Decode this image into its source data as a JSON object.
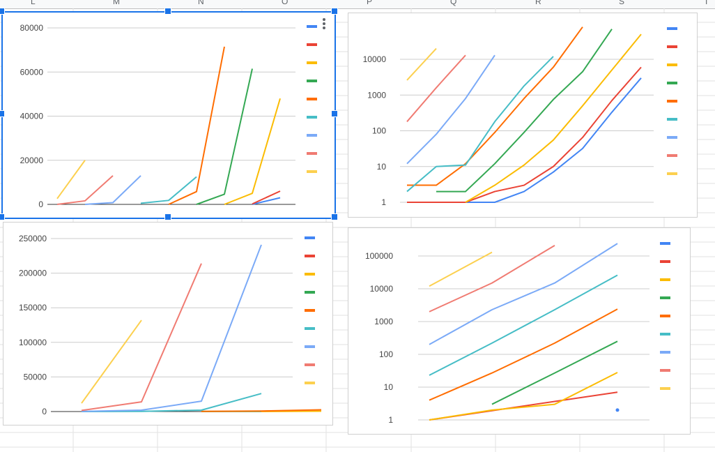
{
  "sheet": {
    "column_headers": [
      "L",
      "M",
      "N",
      "O",
      "P",
      "Q",
      "R",
      "S",
      "T"
    ]
  },
  "colors": [
    "#4285f4",
    "#ea4335",
    "#fbbc04",
    "#34a853",
    "#ff6d01",
    "#46bdc6",
    "#7baaf7",
    "#f07b72",
    "#fcd04f"
  ],
  "chart_data": [
    {
      "type": "line",
      "title": "",
      "ylim": [
        0,
        80000
      ],
      "yticks": [
        "0",
        "20000",
        "40000",
        "60000",
        "80000"
      ],
      "grid": true,
      "legend": "right",
      "series": [
        {
          "color": "#4285f4",
          "points": [
            [
              7,
              0
            ],
            [
              8,
              3000
            ]
          ]
        },
        {
          "color": "#ea4335",
          "points": [
            [
              7,
              200
            ],
            [
              8,
              6000
            ]
          ]
        },
        {
          "color": "#fbbc04",
          "points": [
            [
              6,
              0
            ],
            [
              7,
              5000
            ],
            [
              8,
              48000
            ]
          ]
        },
        {
          "color": "#34a853",
          "points": [
            [
              5,
              0
            ],
            [
              6,
              4600
            ],
            [
              7,
              61500
            ]
          ]
        },
        {
          "color": "#ff6d01",
          "points": [
            [
              4,
              0
            ],
            [
              5,
              5800
            ],
            [
              6,
              71500
            ]
          ]
        },
        {
          "color": "#46bdc6",
          "points": [
            [
              3,
              500
            ],
            [
              4,
              1800
            ],
            [
              5,
              12500
            ]
          ]
        },
        {
          "color": "#7baaf7",
          "points": [
            [
              1,
              0
            ],
            [
              2,
              800
            ],
            [
              3,
              13000
            ]
          ]
        },
        {
          "color": "#f07b72",
          "points": [
            [
              0,
              0
            ],
            [
              1,
              1600
            ],
            [
              2,
              13000
            ]
          ]
        },
        {
          "color": "#fcd04f",
          "points": [
            [
              0,
              2600
            ],
            [
              1,
              20000
            ]
          ]
        }
      ]
    },
    {
      "type": "line",
      "title": "",
      "scale": "log",
      "yticks": [
        "1",
        "10",
        "100",
        "1000",
        "10000"
      ],
      "grid": true,
      "legend": "right",
      "series": [
        {
          "color": "#4285f4",
          "points": [
            [
              2,
              1
            ],
            [
              3,
              1
            ],
            [
              4,
              2
            ],
            [
              5,
              7
            ],
            [
              6,
              32
            ],
            [
              7,
              330
            ],
            [
              8,
              3000
            ]
          ]
        },
        {
          "color": "#ea4335",
          "points": [
            [
              0,
              1
            ],
            [
              2,
              1
            ],
            [
              3,
              2
            ],
            [
              4,
              3
            ],
            [
              5,
              10
            ],
            [
              6,
              65
            ],
            [
              7,
              700
            ],
            [
              8,
              6000
            ]
          ]
        },
        {
          "color": "#fbbc04",
          "points": [
            [
              2,
              1
            ],
            [
              3,
              3
            ],
            [
              4,
              11
            ],
            [
              5,
              55
            ],
            [
              6,
              500
            ],
            [
              7,
              5000
            ],
            [
              8,
              50000
            ]
          ]
        },
        {
          "color": "#34a853",
          "points": [
            [
              1,
              2
            ],
            [
              2,
              2
            ],
            [
              3,
              12
            ],
            [
              4,
              90
            ],
            [
              5,
              750
            ],
            [
              6,
              4500
            ],
            [
              7,
              70000
            ]
          ]
        },
        {
          "color": "#ff6d01",
          "points": [
            [
              0,
              3
            ],
            [
              1,
              3
            ],
            [
              2,
              12
            ],
            [
              3,
              90
            ],
            [
              4,
              800
            ],
            [
              5,
              6000
            ],
            [
              6,
              80000
            ]
          ]
        },
        {
          "color": "#46bdc6",
          "points": [
            [
              0,
              2
            ],
            [
              1,
              10
            ],
            [
              2,
              11
            ],
            [
              3,
              180
            ],
            [
              4,
              1800
            ],
            [
              5,
              12000
            ]
          ]
        },
        {
          "color": "#7baaf7",
          "points": [
            [
              0,
              12
            ],
            [
              1,
              80
            ],
            [
              2,
              800
            ],
            [
              3,
              13000
            ]
          ]
        },
        {
          "color": "#f07b72",
          "points": [
            [
              0,
              180
            ],
            [
              1,
              1600
            ],
            [
              2,
              13000
            ]
          ]
        },
        {
          "color": "#fcd04f",
          "points": [
            [
              0,
              2600
            ],
            [
              1,
              20000
            ]
          ]
        }
      ]
    },
    {
      "type": "line",
      "title": "",
      "ylim": [
        0,
        250000
      ],
      "yticks": [
        "0",
        "50000",
        "100000",
        "150000",
        "200000",
        "250000"
      ],
      "grid": true,
      "legend": "right",
      "series": [
        {
          "color": "#4285f4",
          "points": []
        },
        {
          "color": "#ea4335",
          "points": [
            [
              3,
              500
            ],
            [
              4,
              2000
            ]
          ]
        },
        {
          "color": "#fbbc04",
          "points": [
            [
              3,
              100
            ],
            [
              4,
              500
            ]
          ]
        },
        {
          "color": "#34a853",
          "points": [
            [
              2,
              100
            ],
            [
              3,
              300
            ]
          ]
        },
        {
          "color": "#ff6d01",
          "points": [
            [
              2,
              200
            ],
            [
              3,
              800
            ],
            [
              4,
              2500
            ]
          ]
        },
        {
          "color": "#46bdc6",
          "points": [
            [
              0,
              0
            ],
            [
              1,
              300
            ],
            [
              2,
              2000
            ],
            [
              3,
              26000
            ]
          ]
        },
        {
          "color": "#7baaf7",
          "points": [
            [
              0,
              200
            ],
            [
              1,
              2000
            ],
            [
              2,
              15000
            ],
            [
              3,
              241000
            ]
          ]
        },
        {
          "color": "#f07b72",
          "points": [
            [
              0,
              1600
            ],
            [
              1,
              14000
            ],
            [
              2,
              214000
            ]
          ]
        },
        {
          "color": "#fcd04f",
          "points": [
            [
              0,
              12000
            ],
            [
              1,
              132000
            ]
          ]
        }
      ]
    },
    {
      "type": "line",
      "title": "",
      "scale": "log",
      "yticks": [
        "1",
        "10",
        "100",
        "1000",
        "10000",
        "100000"
      ],
      "grid": true,
      "legend": "right",
      "series": [
        {
          "color": "#4285f4",
          "points": [
            [
              3,
              2
            ]
          ]
        },
        {
          "color": "#ea4335",
          "points": [
            [
              0,
              1
            ],
            [
              3,
              7
            ]
          ]
        },
        {
          "color": "#fbbc04",
          "points": [
            [
              0,
              1
            ],
            [
              1,
              2
            ],
            [
              2,
              3
            ],
            [
              3,
              28
            ]
          ]
        },
        {
          "color": "#34a853",
          "points": [
            [
              1,
              3
            ],
            [
              2,
              27
            ],
            [
              3,
              250
            ]
          ]
        },
        {
          "color": "#ff6d01",
          "points": [
            [
              0,
              4
            ],
            [
              1,
              27
            ],
            [
              2,
              220
            ],
            [
              3,
              2400
            ]
          ]
        },
        {
          "color": "#46bdc6",
          "points": [
            [
              0,
              23
            ],
            [
              1,
              220
            ],
            [
              2,
              2300
            ],
            [
              3,
              26000
            ]
          ]
        },
        {
          "color": "#7baaf7",
          "points": [
            [
              0,
              200
            ],
            [
              1,
              2300
            ],
            [
              2,
              15000
            ],
            [
              3,
              240000
            ]
          ]
        },
        {
          "color": "#f07b72",
          "points": [
            [
              0,
              2000
            ],
            [
              1,
              15000
            ],
            [
              2,
              210000
            ]
          ]
        },
        {
          "color": "#fcd04f",
          "points": [
            [
              0,
              12000
            ],
            [
              1,
              130000
            ]
          ]
        }
      ]
    }
  ]
}
